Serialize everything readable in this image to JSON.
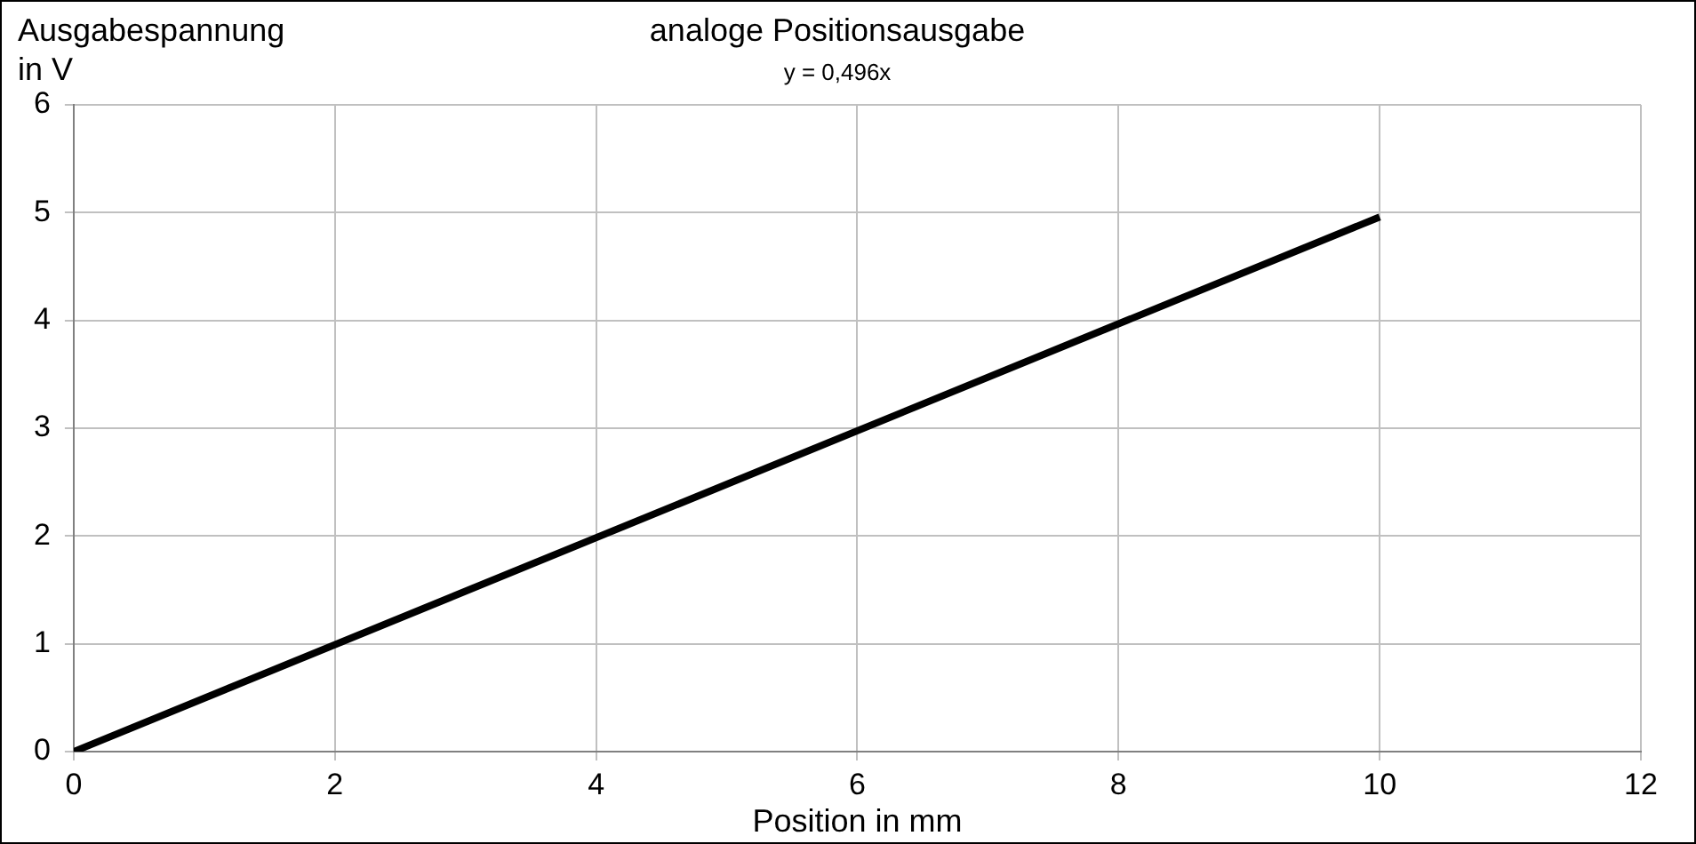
{
  "chart_data": {
    "type": "line",
    "title": "analoge Positionsausgabe",
    "xlabel": "Position in mm",
    "ylabel": "Ausgabespannung in V",
    "annotations": [
      "y = 0,496x"
    ],
    "x": [
      0,
      10
    ],
    "series": [
      {
        "color": "#000000",
        "values": [
          0,
          4.96
        ]
      }
    ],
    "xlim": [
      0,
      12
    ],
    "xticks": [
      0,
      2,
      4,
      6,
      8,
      10,
      12
    ],
    "ylim": [
      0,
      6
    ],
    "yticks": [
      0,
      1,
      2,
      3,
      4,
      5,
      6
    ],
    "grid": true,
    "legend": false,
    "marker": "none",
    "line_style": "solid"
  }
}
